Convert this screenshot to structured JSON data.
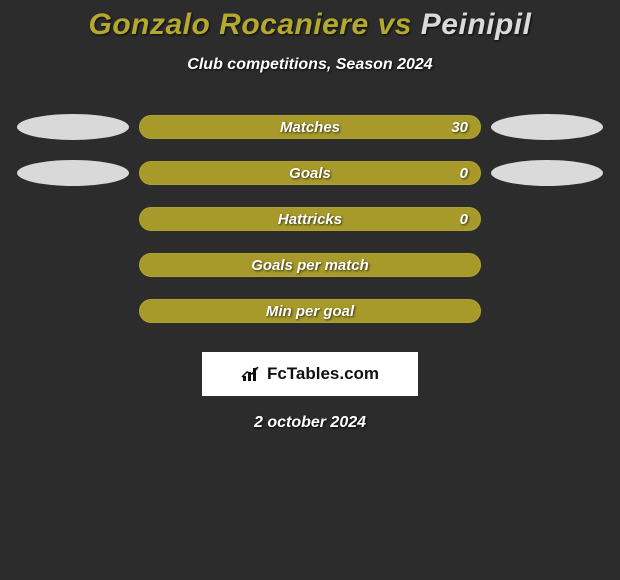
{
  "title": {
    "player1": "Gonzalo Rocaniere",
    "player2": "Peinipil",
    "player1_color": "#b4a92e",
    "player2_color": "#dadada"
  },
  "subtitle": "Club competitions, Season 2024",
  "colors": {
    "bar_fill": "#a79a2a",
    "bar_border": "#b0a232",
    "oval_left": "#d9d9d9",
    "oval_right": "#dadada",
    "background": "#2c2c2c",
    "text": "#ffffff"
  },
  "rows": [
    {
      "label": "Matches",
      "value": "30",
      "show_value": true,
      "oval_left": true,
      "oval_right": true
    },
    {
      "label": "Goals",
      "value": "0",
      "show_value": true,
      "oval_left": true,
      "oval_right": true
    },
    {
      "label": "Hattricks",
      "value": "0",
      "show_value": true,
      "oval_left": false,
      "oval_right": false
    },
    {
      "label": "Goals per match",
      "value": "",
      "show_value": false,
      "oval_left": false,
      "oval_right": false
    },
    {
      "label": "Min per goal",
      "value": "",
      "show_value": false,
      "oval_left": false,
      "oval_right": false
    }
  ],
  "watermark": "FcTables.com",
  "date": "2 october 2024"
}
